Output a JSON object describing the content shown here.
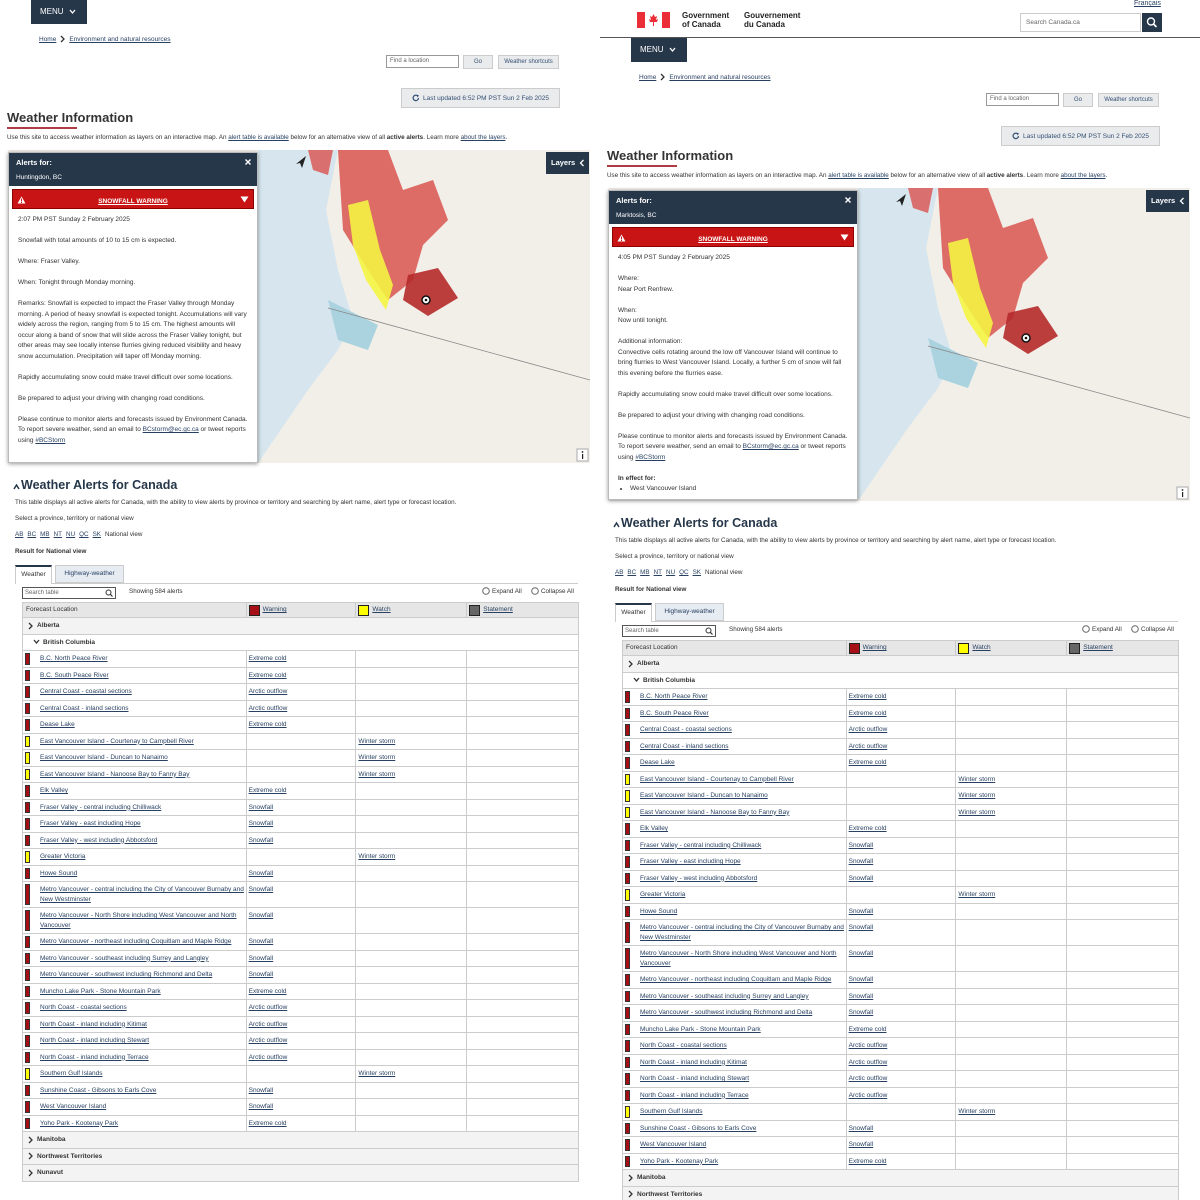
{
  "common": {
    "menu": "MENU",
    "breadcrumb": [
      "Home",
      "Environment and natural resources"
    ],
    "find_location_placeholder": "Find a location",
    "go": "Go",
    "weather_shortcuts": "Weather shortcuts",
    "last_updated": "Last updated 6:52 PM PST Sun 2 Feb 2025",
    "title": "Weather Information",
    "intro": [
      {
        "text": "Use this site to access weather information as layers on an interactive map. An "
      },
      {
        "text": "alert table is available",
        "style": "link"
      },
      {
        "text": " below for an alternative view of all "
      },
      {
        "text": "active alerts",
        "style": "bold"
      },
      {
        "text": ". Learn more "
      },
      {
        "text": "about the layers",
        "style": "link"
      },
      {
        "text": "."
      }
    ],
    "layers": "Layers"
  },
  "gov_header": {
    "language": "Français",
    "english": "Government of Canada",
    "french": "Gouvernement du Canada",
    "search_placeholder": "Search Canada.ca"
  },
  "alerts": [
    {
      "label": "Alerts for:",
      "location": "Huntingdon, BC",
      "warning": "SNOWFALL WARNING",
      "issued": "2:07 PM PST Sunday 2 February 2025",
      "paragraphs": [
        [
          "Snowfall with total amounts of 10 to 15 cm is expected."
        ],
        [
          "Where: Fraser Valley."
        ],
        [
          "When: Tonight through Monday morning."
        ],
        [
          "Remarks: Snowfall is expected to impact the Fraser Valley through Monday morning. A period of heavy snowfall is expected tonight. Accumulations will vary widely across the region, ranging from 5 to 15 cm. The highest amounts will occur along a band of snow that will slide across the Fraser Valley tonight, but other areas may see locally intense flurries giving reduced visibility and heavy snow accumulation. Precipitation will taper off Monday morning."
        ],
        [
          "Rapidly accumulating snow could make travel difficult over some locations."
        ],
        [
          "Be prepared to adjust your driving with changing road conditions."
        ]
      ],
      "contact": [
        {
          "text": "Please continue to monitor alerts and forecasts issued by Environment Canada. To report severe weather, send an email to "
        },
        {
          "text": "BCstorm@ec.gc.ca",
          "style": "link"
        },
        {
          "text": " or tweet reports using "
        },
        {
          "text": "#BCStorm",
          "style": "link"
        }
      ]
    },
    {
      "label": "Alerts for:",
      "location": "Marktosis, BC",
      "warning": "SNOWFALL WARNING",
      "issued": "4:05 PM PST Sunday 2 February 2025",
      "paragraphs": [
        [
          "Where:",
          "Near Port Renfrew."
        ],
        [
          "When:",
          "Now until tonight."
        ],
        [
          "Additional information:",
          "Convective cells rotating around the low off Vancouver Island will continue to bring flurries to West Vancouver Island. Locally, a further 5 cm of snow will fall this evening before the flurries ease."
        ],
        [
          "Rapidly accumulating snow could make travel difficult over some locations."
        ],
        [
          "Be prepared to adjust your driving with changing road conditions."
        ]
      ],
      "contact": [
        {
          "text": "Please continue to monitor alerts and forecasts issued by Environment Canada. To report severe weather, send an email to "
        },
        {
          "text": "BCstorm@ec.gc.ca",
          "style": "link"
        },
        {
          "text": " or tweet reports using "
        },
        {
          "text": "#BCStorm",
          "style": "link"
        }
      ],
      "in_effect_label": "In effect for:",
      "in_effect": [
        "West Vancouver Island"
      ]
    }
  ],
  "alerts_section": {
    "title": "Weather Alerts for Canada",
    "description": "This table displays all active alerts for Canada, with the ability to view alerts by province or territory and searching by alert name, alert type or forecast location.",
    "select_prompt": "Select a province, territory or national view",
    "provinces": [
      "AB",
      "BC",
      "MB",
      "NT",
      "NU",
      "QC",
      "SK"
    ],
    "national_view": "National view",
    "result": "Result for National view",
    "tabs": [
      "Weather",
      "Highway-weather"
    ],
    "search_placeholder": "Search table",
    "showing": "Showing 584 alerts",
    "expand_all": "Expand All",
    "collapse_all": "Collapse All"
  },
  "table": {
    "headers": [
      "Forecast Location",
      "Warning",
      "Watch",
      "Statement"
    ],
    "legend_colors": [
      "#a50f15",
      "#ffff00",
      "#666666"
    ],
    "groups": [
      {
        "name": "Alberta"
      },
      {
        "name": "British Columbia",
        "rows": [
          {
            "location": "B.C. North Peace River",
            "warning": "Extreme cold"
          },
          {
            "location": "B.C. South Peace River",
            "warning": "Extreme cold"
          },
          {
            "location": "Central Coast - coastal sections",
            "warning": "Arctic outflow"
          },
          {
            "location": "Central Coast - inland sections",
            "warning": "Arctic outflow"
          },
          {
            "location": "Dease Lake",
            "warning": "Extreme cold"
          },
          {
            "location": "East Vancouver Island - Courtenay to Campbell River",
            "watch": "Winter storm"
          },
          {
            "location": "East Vancouver Island - Duncan to Nanaimo",
            "watch": "Winter storm"
          },
          {
            "location": "East Vancouver Island - Nanoose Bay to Fanny Bay",
            "watch": "Winter storm"
          },
          {
            "location": "Elk Valley",
            "warning": "Extreme cold"
          },
          {
            "location": "Fraser Valley - central including Chilliwack",
            "warning": "Snowfall"
          },
          {
            "location": "Fraser Valley - east including Hope",
            "warning": "Snowfall"
          },
          {
            "location": "Fraser Valley - west including Abbotsford",
            "warning": "Snowfall"
          },
          {
            "location": "Greater Victoria",
            "watch": "Winter storm"
          },
          {
            "location": "Howe Sound",
            "warning": "Snowfall"
          },
          {
            "location": "Metro Vancouver - central including the City of Vancouver Burnaby and New Westminster",
            "warning": "Snowfall"
          },
          {
            "location": "Metro Vancouver - North Shore including West Vancouver and North Vancouver",
            "warning": "Snowfall"
          },
          {
            "location": "Metro Vancouver - northeast including Coquitlam and Maple Ridge",
            "warning": "Snowfall"
          },
          {
            "location": "Metro Vancouver - southeast including Surrey and Langley",
            "warning": "Snowfall"
          },
          {
            "location": "Metro Vancouver - southwest including Richmond and Delta",
            "warning": "Snowfall"
          },
          {
            "location": "Muncho Lake Park - Stone Mountain Park",
            "warning": "Extreme cold"
          },
          {
            "location": "North Coast - coastal sections",
            "warning": "Arctic outflow"
          },
          {
            "location": "North Coast - inland including Kitimat",
            "warning": "Arctic outflow"
          },
          {
            "location": "North Coast - inland including Stewart",
            "warning": "Arctic outflow"
          },
          {
            "location": "North Coast - inland including Terrace",
            "warning": "Arctic outflow"
          },
          {
            "location": "Southern Gulf Islands",
            "watch": "Winter storm"
          },
          {
            "location": "Sunshine Coast - Gibsons to Earls Cove",
            "warning": "Snowfall"
          },
          {
            "location": "West Vancouver Island",
            "warning": "Snowfall"
          },
          {
            "location": "Yoho Park - Kootenay Park",
            "warning": "Extreme cold"
          }
        ]
      },
      {
        "name": "Manitoba"
      },
      {
        "name": "Northwest Territories"
      },
      {
        "name": "Nunavut"
      }
    ]
  }
}
